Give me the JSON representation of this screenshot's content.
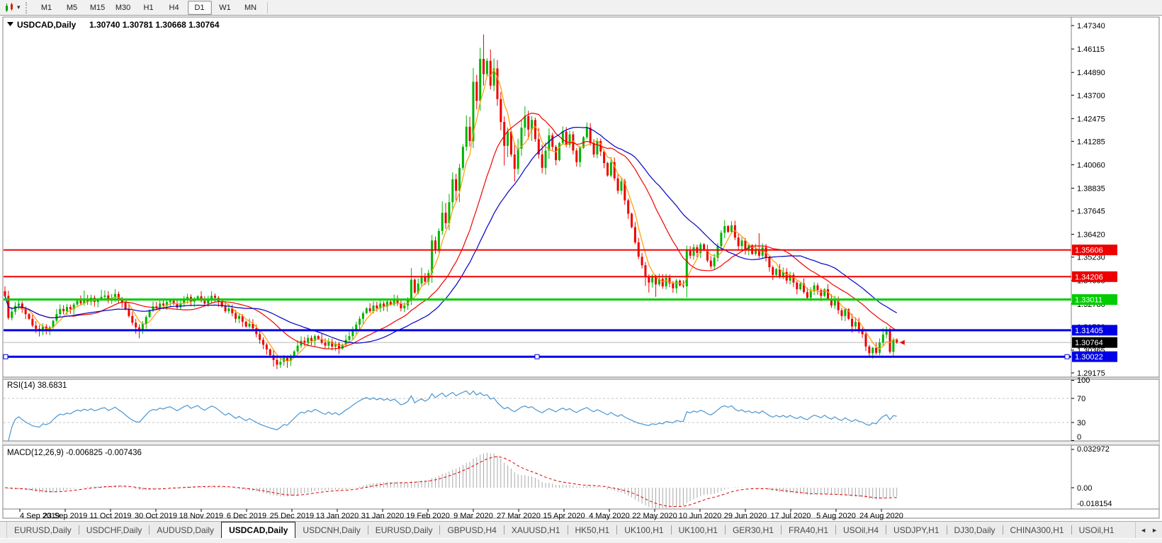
{
  "toolbar": {
    "dropdown_caret": "▾",
    "timeframes": [
      "M1",
      "M5",
      "M15",
      "M30",
      "H1",
      "H4",
      "D1",
      "W1",
      "MN"
    ],
    "active_timeframe": "D1"
  },
  "chart": {
    "collapse_arrow": "▼",
    "title": "USDCAD,Daily",
    "quote_line": "1.30740 1.30781 1.30668 1.30764"
  },
  "chart_data": {
    "type": "candlestick",
    "symbol": "USDCAD",
    "period": "Daily",
    "ohlc_display": {
      "open": "1.30740",
      "high": "1.30781",
      "low": "1.30668",
      "close": "1.30764"
    },
    "price_ticks": [
      "1.47340",
      "1.46115",
      "1.44890",
      "1.43700",
      "1.42475",
      "1.41285",
      "1.40060",
      "1.38835",
      "1.37645",
      "1.36420",
      "1.35230",
      "1.34005",
      "1.32780",
      "1.31580",
      "1.30365",
      "1.29175"
    ],
    "date_labels": [
      "4 Sep 2019",
      "23 Sep 2019",
      "11 Oct 2019",
      "30 Oct 2019",
      "18 Nov 2019",
      "6 Dec 2019",
      "25 Dec 2019",
      "13 Jan 2020",
      "31 Jan 2020",
      "19 Feb 2020",
      "9 Mar 2020",
      "27 Mar 2020",
      "15 Apr 2020",
      "4 May 2020",
      "22 May 2020",
      "10 Jun 2020",
      "29 Jun 2020",
      "17 Jul 2020",
      "5 Aug 2020",
      "24 Aug 2020"
    ],
    "open_first": 1.3345,
    "closes": [
      1.332,
      1.3205,
      1.3238,
      1.3268,
      1.328,
      1.3255,
      1.3225,
      1.32,
      1.3165,
      1.3148,
      1.3135,
      1.316,
      1.3142,
      1.3155,
      1.319,
      1.3225,
      1.3252,
      1.324,
      1.3262,
      1.325,
      1.3275,
      1.3295,
      1.3282,
      1.3305,
      1.329,
      1.331,
      1.3288,
      1.33,
      1.3315,
      1.3322,
      1.3295,
      1.331,
      1.333,
      1.3305,
      1.3285,
      1.325,
      1.3215,
      1.318,
      1.3155,
      1.3145,
      1.3175,
      1.321,
      1.3245,
      1.3265,
      1.3258,
      1.328,
      1.327,
      1.3288,
      1.3295,
      1.3278,
      1.326,
      1.328,
      1.33,
      1.3315,
      1.329,
      1.3305,
      1.3318,
      1.3295,
      1.328,
      1.33,
      1.332,
      1.331,
      1.329,
      1.3265,
      1.324,
      1.3255,
      1.323,
      1.32,
      1.3215,
      1.3185,
      1.316,
      1.3175,
      1.315,
      1.312,
      1.309,
      1.3065,
      1.304,
      1.301,
      1.2985,
      1.296,
      1.2975,
      1.2995,
      1.298,
      1.3005,
      1.303,
      1.306,
      1.3085,
      1.3075,
      1.31,
      1.3085,
      1.311,
      1.3095,
      1.3075,
      1.306,
      1.308,
      1.3055,
      1.307,
      1.3045,
      1.3065,
      1.309,
      1.311,
      1.314,
      1.317,
      1.32,
      1.323,
      1.3255,
      1.324,
      1.327,
      1.3255,
      1.328,
      1.3265,
      1.329,
      1.3275,
      1.33,
      1.328,
      1.3255,
      1.327,
      1.33,
      1.3405,
      1.3337,
      1.3385,
      1.342,
      1.3395,
      1.344,
      1.361,
      1.356,
      1.366,
      1.3755,
      1.37,
      1.381,
      1.393,
      1.387,
      1.399,
      1.41,
      1.4205,
      1.413,
      1.444,
      1.434,
      1.456,
      1.448,
      1.455,
      1.442,
      1.451,
      1.435,
      1.423,
      1.4105,
      1.418,
      1.406,
      1.3985,
      1.409,
      1.42,
      1.426,
      1.419,
      1.424,
      1.414,
      1.406,
      1.399,
      1.408,
      1.416,
      1.41,
      1.403,
      1.412,
      1.418,
      1.411,
      1.4165,
      1.408,
      1.402,
      1.4095,
      1.415,
      1.42,
      1.412,
      1.406,
      1.413,
      1.4075,
      1.4015,
      1.395,
      1.402,
      1.3935,
      1.387,
      1.392,
      1.382,
      1.375,
      1.368,
      1.36,
      1.3525,
      1.348,
      1.342,
      1.339,
      1.3425,
      1.338,
      1.341,
      1.337,
      1.3415,
      1.3385,
      1.336,
      1.34,
      1.3375,
      1.337,
      1.356,
      1.353,
      1.3575,
      1.3545,
      1.359,
      1.356,
      1.3505,
      1.3475,
      1.352,
      1.358,
      1.365,
      1.3685,
      1.3655,
      1.369,
      1.3625,
      1.358,
      1.361,
      1.356,
      1.3585,
      1.354,
      1.3565,
      1.353,
      1.3575,
      1.352,
      1.347,
      1.343,
      1.346,
      1.342,
      1.3445,
      1.34,
      1.343,
      1.339,
      1.3355,
      1.3385,
      1.334,
      1.331,
      1.3345,
      1.3375,
      1.335,
      1.332,
      1.3355,
      1.3305,
      1.327,
      1.33,
      1.3245,
      1.3215,
      1.325,
      1.32,
      1.316,
      1.3185,
      1.314,
      1.312,
      1.3055,
      1.302,
      1.3048,
      1.3022,
      1.3075,
      1.3118,
      1.3142,
      1.3028,
      1.3092,
      1.3076
    ],
    "wick_high": {
      "0": 1.337,
      "23": 1.3348,
      "28": 1.3352,
      "32": 1.3356,
      "60": 1.3345,
      "118": 1.3465,
      "121": 1.3468,
      "136": 1.4512,
      "138": 1.4618,
      "139": 1.4688,
      "151": 1.4312,
      "209": 1.3716,
      "211": 1.3712,
      "219": 1.3648,
      "255": 1.315,
      "256": 1.316
    },
    "wick_low": {
      "9": 1.3126,
      "10": 1.3108,
      "38": 1.3122,
      "39": 1.3098,
      "78": 1.295,
      "79": 1.2937,
      "82": 1.2944,
      "97": 1.3016,
      "125": 1.354,
      "145": 1.4002,
      "148": 1.3918,
      "186": 1.3372,
      "187": 1.3338,
      "189": 1.3315,
      "198": 1.3312,
      "246": 1.3128,
      "251": 1.2996,
      "252": 1.2992,
      "257": 1.3018
    },
    "colors": {
      "bull": "#00b400",
      "bear": "#ee0000",
      "ma_fast": "#ff9c00",
      "ma_mid": "#f00000",
      "ma_slow": "#0000c8",
      "rsi": "#4a96d2",
      "macd_hist": "#a8a8a8",
      "macd_signal": "#e00000",
      "grid_dash": "#c4c4c4",
      "price_line": "#b8b8b8",
      "label_text": "#ffffff",
      "axis_text": "#000000"
    },
    "moving_averages": [
      {
        "period": 5,
        "color_key": "ma_fast"
      },
      {
        "period": 20,
        "color_key": "ma_mid"
      },
      {
        "period": 34,
        "color_key": "ma_slow"
      }
    ],
    "hlines": [
      {
        "price": 1.35606,
        "label": "1.35606",
        "color": "#ee0000",
        "width": 2,
        "selected": false
      },
      {
        "price": 1.34206,
        "label": "1.34206",
        "color": "#ee0000",
        "width": 2,
        "selected": false
      },
      {
        "price": 1.33011,
        "label": "1.33011",
        "color": "#00cc00",
        "width": 3,
        "selected": false
      },
      {
        "price": 1.31405,
        "label": "1.31405",
        "color": "#0000e6",
        "width": 3,
        "selected": false
      },
      {
        "price": 1.30022,
        "label": "1.30022",
        "color": "#0000e6",
        "width": 3,
        "selected": true
      }
    ],
    "current_price": {
      "value": 1.30764,
      "label": "1.30764"
    },
    "indicators": {
      "rsi": {
        "label": "RSI(14)",
        "value": "38.6831",
        "period": 14,
        "levels": [
          70,
          30
        ],
        "axis_labels": [
          "100",
          "70",
          "30",
          "0"
        ]
      },
      "macd": {
        "label": "MACD(12,26,9)",
        "fast": 12,
        "slow": 26,
        "signal": 9,
        "value": "-0.006825",
        "signal_value": "-0.007436",
        "axis_labels": [
          "0.032972",
          "0.00",
          "-0.018154"
        ]
      }
    }
  },
  "tabbar": {
    "tabs": [
      "EURUSD,Daily",
      "USDCHF,Daily",
      "AUDUSD,Daily",
      "USDCAD,Daily",
      "USDCNH,Daily",
      "EURUSD,Daily",
      "GBPUSD,H4",
      "XAUUSD,H1",
      "HK50,H1",
      "UK100,H1",
      "UK100,H1",
      "GER30,H1",
      "FRA40,H1",
      "USOil,H4",
      "USDJPY,H1",
      "DJ30,Daily",
      "CHINA300,H1",
      "USOil,H1"
    ],
    "active_index": 3,
    "scroll_left": "◄",
    "scroll_right": "►"
  }
}
